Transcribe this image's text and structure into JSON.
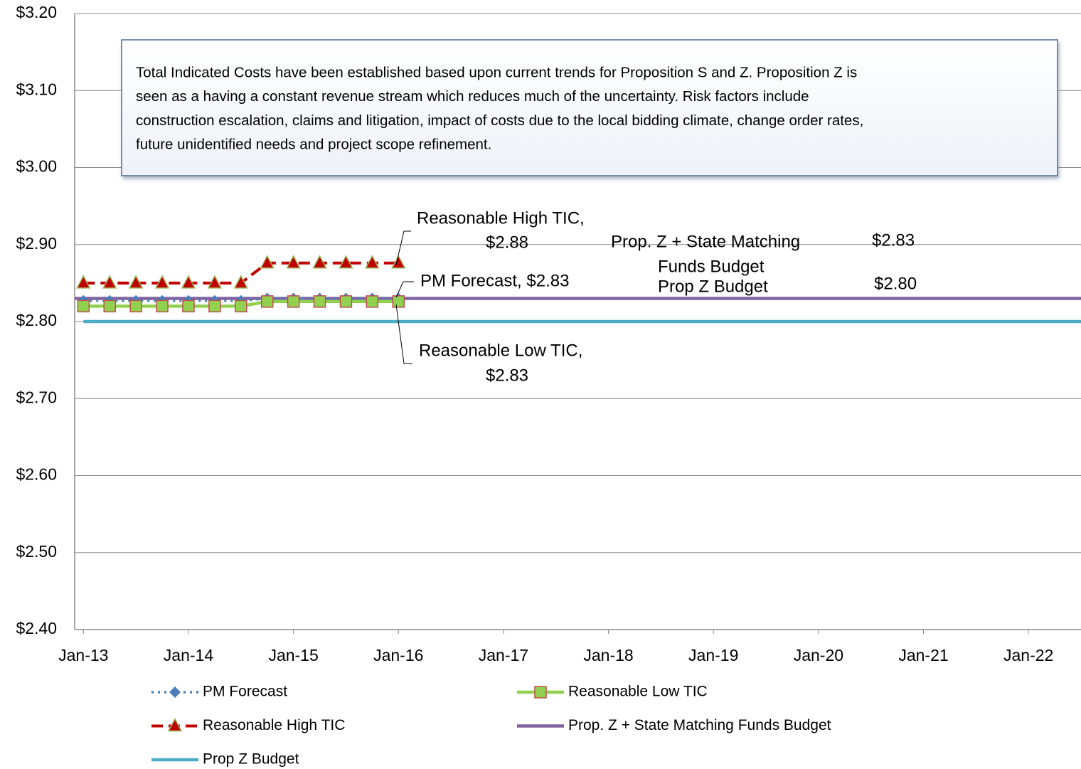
{
  "chart_data": {
    "type": "line",
    "ylim": [
      2.4,
      3.2
    ],
    "yticks": [
      {
        "value": 2.4,
        "label": "$2.40"
      },
      {
        "value": 2.5,
        "label": "$2.50"
      },
      {
        "value": 2.6,
        "label": "$2.60"
      },
      {
        "value": 2.7,
        "label": "$2.70"
      },
      {
        "value": 2.8,
        "label": "$2.80"
      },
      {
        "value": 2.9,
        "label": "$2.90"
      },
      {
        "value": 3.0,
        "label": "$3.00"
      },
      {
        "value": 3.1,
        "label": "$3.10"
      },
      {
        "value": 3.2,
        "label": "$3.20"
      }
    ],
    "xlim": [
      "2012-12",
      "2022-07"
    ],
    "xticks": [
      {
        "value": "2013-01",
        "label": "Jan-13"
      },
      {
        "value": "2014-01",
        "label": "Jan-14"
      },
      {
        "value": "2015-01",
        "label": "Jan-15"
      },
      {
        "value": "2016-01",
        "label": "Jan-16"
      },
      {
        "value": "2017-01",
        "label": "Jan-17"
      },
      {
        "value": "2018-01",
        "label": "Jan-18"
      },
      {
        "value": "2019-01",
        "label": "Jan-19"
      },
      {
        "value": "2020-01",
        "label": "Jan-20"
      },
      {
        "value": "2021-01",
        "label": "Jan-21"
      },
      {
        "value": "2022-01",
        "label": "Jan-22"
      }
    ],
    "grid": true,
    "series": [
      {
        "name": "PM Forecast",
        "color": "#4a7ebb",
        "style": "dotted",
        "marker": "diamond",
        "x": [
          "2013-01",
          "2013-04",
          "2013-07",
          "2013-10",
          "2014-01",
          "2014-04",
          "2014-07",
          "2014-10",
          "2015-01",
          "2015-04",
          "2015-07",
          "2015-10",
          "2016-01"
        ],
        "values": [
          2.827,
          2.827,
          2.827,
          2.827,
          2.827,
          2.827,
          2.827,
          2.83,
          2.83,
          2.83,
          2.83,
          2.83,
          2.83
        ]
      },
      {
        "name": "Reasonable Low TIC",
        "color": "#92d050",
        "style": "solid",
        "marker": "square",
        "x": [
          "2013-01",
          "2013-04",
          "2013-07",
          "2013-10",
          "2014-01",
          "2014-04",
          "2014-07",
          "2014-10",
          "2015-01",
          "2015-04",
          "2015-07",
          "2015-10",
          "2016-01"
        ],
        "values": [
          2.82,
          2.82,
          2.82,
          2.82,
          2.82,
          2.82,
          2.82,
          2.826,
          2.826,
          2.826,
          2.826,
          2.826,
          2.826
        ]
      },
      {
        "name": "Reasonable High TIC",
        "color": "#c00000",
        "style": "dashed",
        "marker": "triangle",
        "x": [
          "2013-01",
          "2013-04",
          "2013-07",
          "2013-10",
          "2014-01",
          "2014-04",
          "2014-07",
          "2014-10",
          "2015-01",
          "2015-04",
          "2015-07",
          "2015-10",
          "2016-01"
        ],
        "values": [
          2.85,
          2.85,
          2.85,
          2.85,
          2.85,
          2.85,
          2.85,
          2.876,
          2.876,
          2.876,
          2.876,
          2.876,
          2.876
        ]
      },
      {
        "name": "Prop. Z + State Matching Funds Budget",
        "color": "#8064a2",
        "style": "solid",
        "marker": "none",
        "x": [
          "2012-12",
          "2022-07"
        ],
        "values": [
          2.83,
          2.83
        ]
      },
      {
        "name": "Prop Z Budget",
        "color": "#4bacc6",
        "style": "solid",
        "marker": "none",
        "x": [
          "2013-01",
          "2022-07"
        ],
        "values": [
          2.8,
          2.8
        ]
      }
    ],
    "note": [
      "Total Indicated Costs have been established based upon current trends for Proposition S and Z.  Proposition Z is",
      "seen as a having a constant revenue stream which reduces much of the uncertainty.  Risk factors include",
      "construction escalation, claims and litigation, impact of costs due to the  local bidding climate, change order rates,",
      "future unidentified needs and project scope refinement."
    ],
    "annotations": [
      "Reasonable High TIC,",
      "$2.88",
      "PM Forecast,  $2.83",
      "Reasonable Low TIC,",
      "$2.83",
      "Prop. Z + State Matching",
      "Funds Budget",
      "$2.83",
      "Prop Z Budget",
      "$2.80"
    ]
  }
}
